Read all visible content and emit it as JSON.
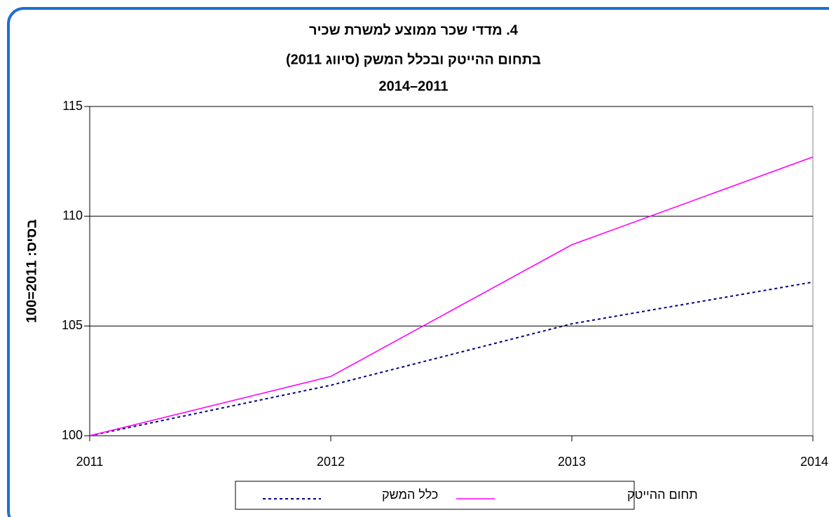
{
  "chart_data": {
    "type": "line",
    "title": "4. מדדי שכר ממוצע למשרת שכיר",
    "subtitle": "בתחום ההייטק ובכלל המשק (סיווג 2011)",
    "subtitle2": "2011–2014",
    "y_label": "בסיס: 2011=100",
    "x": [
      2011,
      2012,
      2013,
      2014
    ],
    "xlim": [
      2011,
      2014
    ],
    "xticks": [
      2011,
      2012,
      2013,
      2014
    ],
    "ylim": [
      100,
      115
    ],
    "yticks": [
      100,
      105,
      110,
      115
    ],
    "grid": true,
    "series": [
      {
        "name": "כלל המשק",
        "color": "#000080",
        "dash": true,
        "values": [
          100,
          102.3,
          105.1,
          107.0
        ]
      },
      {
        "name": "תחום ההייטק",
        "color": "#ff00ff",
        "dash": false,
        "values": [
          100,
          102.7,
          108.7,
          112.7
        ]
      }
    ]
  }
}
